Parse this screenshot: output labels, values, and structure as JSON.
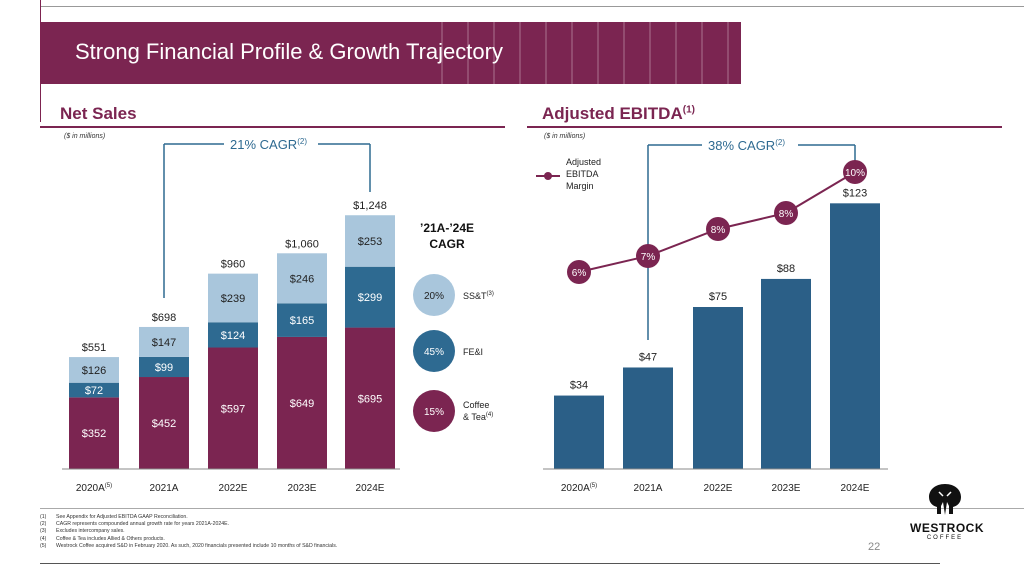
{
  "banner": {
    "title": "Strong Financial Profile & Growth Trajectory"
  },
  "net_sales": {
    "title": "Net Sales",
    "units": "($ in millions)",
    "cagr_label": "21% CAGR",
    "cagr_sup": "(2)",
    "cagr_box_title": "’21A-’24E",
    "cagr_box_title2": "CAGR"
  },
  "ebitda": {
    "title": "Adjusted EBITDA",
    "title_sup": "(1)",
    "units": "($ in millions)",
    "cagr_label": "38% CAGR",
    "cagr_sup": "(2)",
    "legend_line1": "Adjusted",
    "legend_line2": "EBITDA",
    "legend_line3": "Margin"
  },
  "colors": {
    "maroon": "#7b2551",
    "blue": "#2e6a91",
    "light_blue": "#a9c6dc",
    "ebitda_blue": "#2b5f87"
  },
  "chart_data": [
    {
      "type": "bar",
      "stacked": true,
      "categories": [
        "2020A",
        "2021A",
        "2022E",
        "2023E",
        "2024E"
      ],
      "category_sups": [
        "(5)",
        "",
        "",
        "",
        ""
      ],
      "series": [
        {
          "name": "Coffee & Tea",
          "name_sup": "(4)",
          "values": [
            352,
            452,
            597,
            649,
            695
          ],
          "labels": [
            "$352",
            "$452",
            "$597",
            "$649",
            "$695"
          ],
          "cagr": "15%",
          "color": "#7b2551"
        },
        {
          "name": "FE&I",
          "name_sup": "",
          "values": [
            72,
            99,
            124,
            165,
            299
          ],
          "labels": [
            "$72",
            "$99",
            "$124",
            "$165",
            "$299"
          ],
          "cagr": "45%",
          "color": "#2e6a91"
        },
        {
          "name": "SS&T",
          "name_sup": "(3)",
          "values": [
            126,
            147,
            239,
            246,
            253
          ],
          "labels": [
            "$126",
            "$147",
            "$239",
            "$246",
            "$253"
          ],
          "cagr": "20%",
          "color": "#a9c6dc"
        }
      ],
      "totals": [
        "$551",
        "$698",
        "$960",
        "$1,060",
        "$1,248"
      ],
      "total_values": [
        551,
        698,
        960,
        1060,
        1248
      ]
    },
    {
      "type": "bar",
      "categories": [
        "2020A",
        "2021A",
        "2022E",
        "2023E",
        "2024E"
      ],
      "category_sups": [
        "(5)",
        "",
        "",
        "",
        ""
      ],
      "values": [
        34,
        47,
        75,
        88,
        123
      ],
      "labels": [
        "$34",
        "$47",
        "$75",
        "$88",
        "$123"
      ],
      "line_series": {
        "name": "Adjusted EBITDA Margin",
        "values": [
          6,
          7,
          8,
          8,
          10
        ],
        "labels": [
          "6%",
          "7%",
          "8%",
          "8%",
          "10%"
        ]
      }
    }
  ],
  "footnotes": [
    {
      "num": "(1)",
      "text": "See Appendix for Adjusted EBITDA GAAP Reconciliation."
    },
    {
      "num": "(2)",
      "text": "CAGR represents compounded annual growth rate for years 2021A-2024E."
    },
    {
      "num": "(3)",
      "text": "Excludes intercompany sales."
    },
    {
      "num": "(4)",
      "text": "Coffee & Tea includes Allied & Others products."
    },
    {
      "num": "(5)",
      "text": "Westrock Coffee acquired S&D in February 2020. As such, 2020 financials presented include 10 months of S&D financials."
    }
  ],
  "page_number": "22",
  "logo": {
    "name": "WESTROCK",
    "sub": "COFFEE"
  }
}
